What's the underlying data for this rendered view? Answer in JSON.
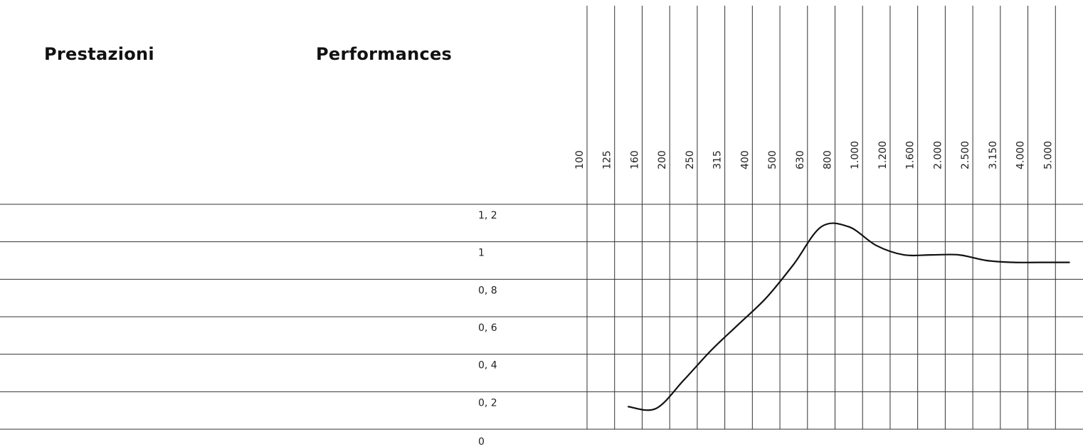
{
  "headings": {
    "italian": "Prestazioni",
    "english": "Performances"
  },
  "chart_data": {
    "type": "line",
    "xlabel": "",
    "ylabel": "",
    "x_scale": "categorical",
    "categories": [
      "100",
      "125",
      "160",
      "200",
      "250",
      "315",
      "400",
      "500",
      "630",
      "800",
      "1.000",
      "1.200",
      "1.600",
      "2.000",
      "2.500",
      "3.150",
      "4.000",
      "5.000"
    ],
    "y_ticks": [
      "0",
      "0, 2",
      "0, 4",
      "0, 6",
      "0, 8",
      "1",
      "1, 2"
    ],
    "ylim": [
      0,
      1.2
    ],
    "grid": true,
    "series": [
      {
        "x": [
          "125",
          "160",
          "200",
          "250",
          "315",
          "400",
          "500",
          "630",
          "800",
          "1.000",
          "1.200",
          "1.600",
          "2.000",
          "2.500",
          "3.150",
          "4.000",
          "5.000"
        ],
        "values": [
          0.12,
          0.11,
          0.26,
          0.42,
          0.56,
          0.7,
          0.88,
          1.08,
          1.08,
          0.98,
          0.93,
          0.93,
          0.93,
          0.9,
          0.89,
          0.89,
          0.89
        ]
      }
    ],
    "line_color": "#111111"
  }
}
